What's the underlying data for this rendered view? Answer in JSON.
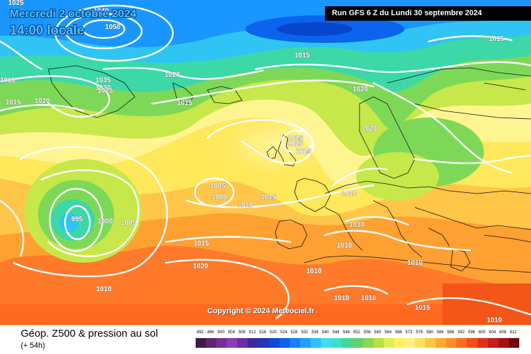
{
  "header": {
    "valid_date": "Mercredi 2 octobre 2024",
    "valid_time": "14:00 locale",
    "run_info": "Run GFS 6 Z du Lundi 30 septembre 2024"
  },
  "map": {
    "copyright": "Copyright © 2024 Meteociel.fr",
    "isobar_labels": [
      "1025",
      "1040",
      "1050",
      "1010",
      "1015",
      "1035",
      "1030",
      "1025",
      "1020",
      "1020",
      "1015",
      "1015",
      "1020",
      "1025",
      "1025",
      "1025",
      "1020",
      "1015",
      "1005",
      "1000",
      "1010",
      "1015",
      "1010",
      "995",
      "1000",
      "1005",
      "1010",
      "1015",
      "1010",
      "1020",
      "1010",
      "1010",
      "1010",
      "1010",
      "1010",
      "1015",
      "1010"
    ]
  },
  "footer": {
    "title": "Géop. Z500 & pression au sol",
    "lead_time": "(+ 54h)"
  },
  "colorscale": {
    "ticks": [
      "492",
      "496",
      "500",
      "504",
      "508",
      "512",
      "516",
      "520",
      "524",
      "528",
      "532",
      "536",
      "540",
      "544",
      "548",
      "552",
      "556",
      "560",
      "564",
      "568",
      "572",
      "576",
      "580",
      "584",
      "588",
      "592",
      "596",
      "600",
      "604",
      "608",
      "612"
    ],
    "colors": [
      "#3c1a48",
      "#5e2470",
      "#7a2e94",
      "#8d3bb2",
      "#6b2ea6",
      "#3a2a9e",
      "#1f38b8",
      "#1048d8",
      "#0a60f0",
      "#1580ff",
      "#20a0ff",
      "#30c0ff",
      "#40dcf0",
      "#3ce0c8",
      "#40d898",
      "#60d070",
      "#8cd850",
      "#b8e040",
      "#e0ee50",
      "#fff060",
      "#fff080",
      "#ffe060",
      "#ffc840",
      "#ffa830",
      "#ff8c28",
      "#ff6c20",
      "#f84c18",
      "#e03018",
      "#c81c18",
      "#a81010",
      "#700808"
    ]
  }
}
